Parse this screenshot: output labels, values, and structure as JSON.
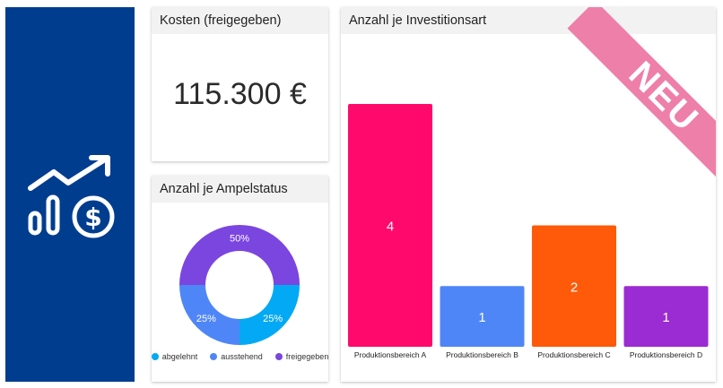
{
  "brand": {
    "icon": "finance-growth-icon",
    "color": "#003d8f"
  },
  "costs_card": {
    "title": "Kosten (freigegeben)",
    "value": "115.300 €"
  },
  "ampel_card": {
    "title": "Anzahl je Ampelstatus",
    "segments": [
      {
        "label": "abgelehnt",
        "percent_label": "25%",
        "value": 25,
        "color": "#03a9f4"
      },
      {
        "label": "ausstehend",
        "percent_label": "25%",
        "value": 25,
        "color": "#4f86f7"
      },
      {
        "label": "freigegeben",
        "percent_label": "50%",
        "value": 50,
        "color": "#7b45e0"
      }
    ]
  },
  "invest_card": {
    "title": "Anzahl je Investitionsart",
    "badge": "NEU"
  },
  "chart_data": {
    "type": "bar",
    "categories": [
      "Produktionsbereich A",
      "Produktionsbereich B",
      "Produktionsbereich C",
      "Produktionsbereich D"
    ],
    "values": [
      4,
      1,
      2,
      1
    ],
    "colors": [
      "#ff0a6c",
      "#4f86f7",
      "#ff5a0a",
      "#9b2bd2"
    ],
    "ylim": [
      0,
      4
    ],
    "grid": false,
    "data_labels": true
  }
}
